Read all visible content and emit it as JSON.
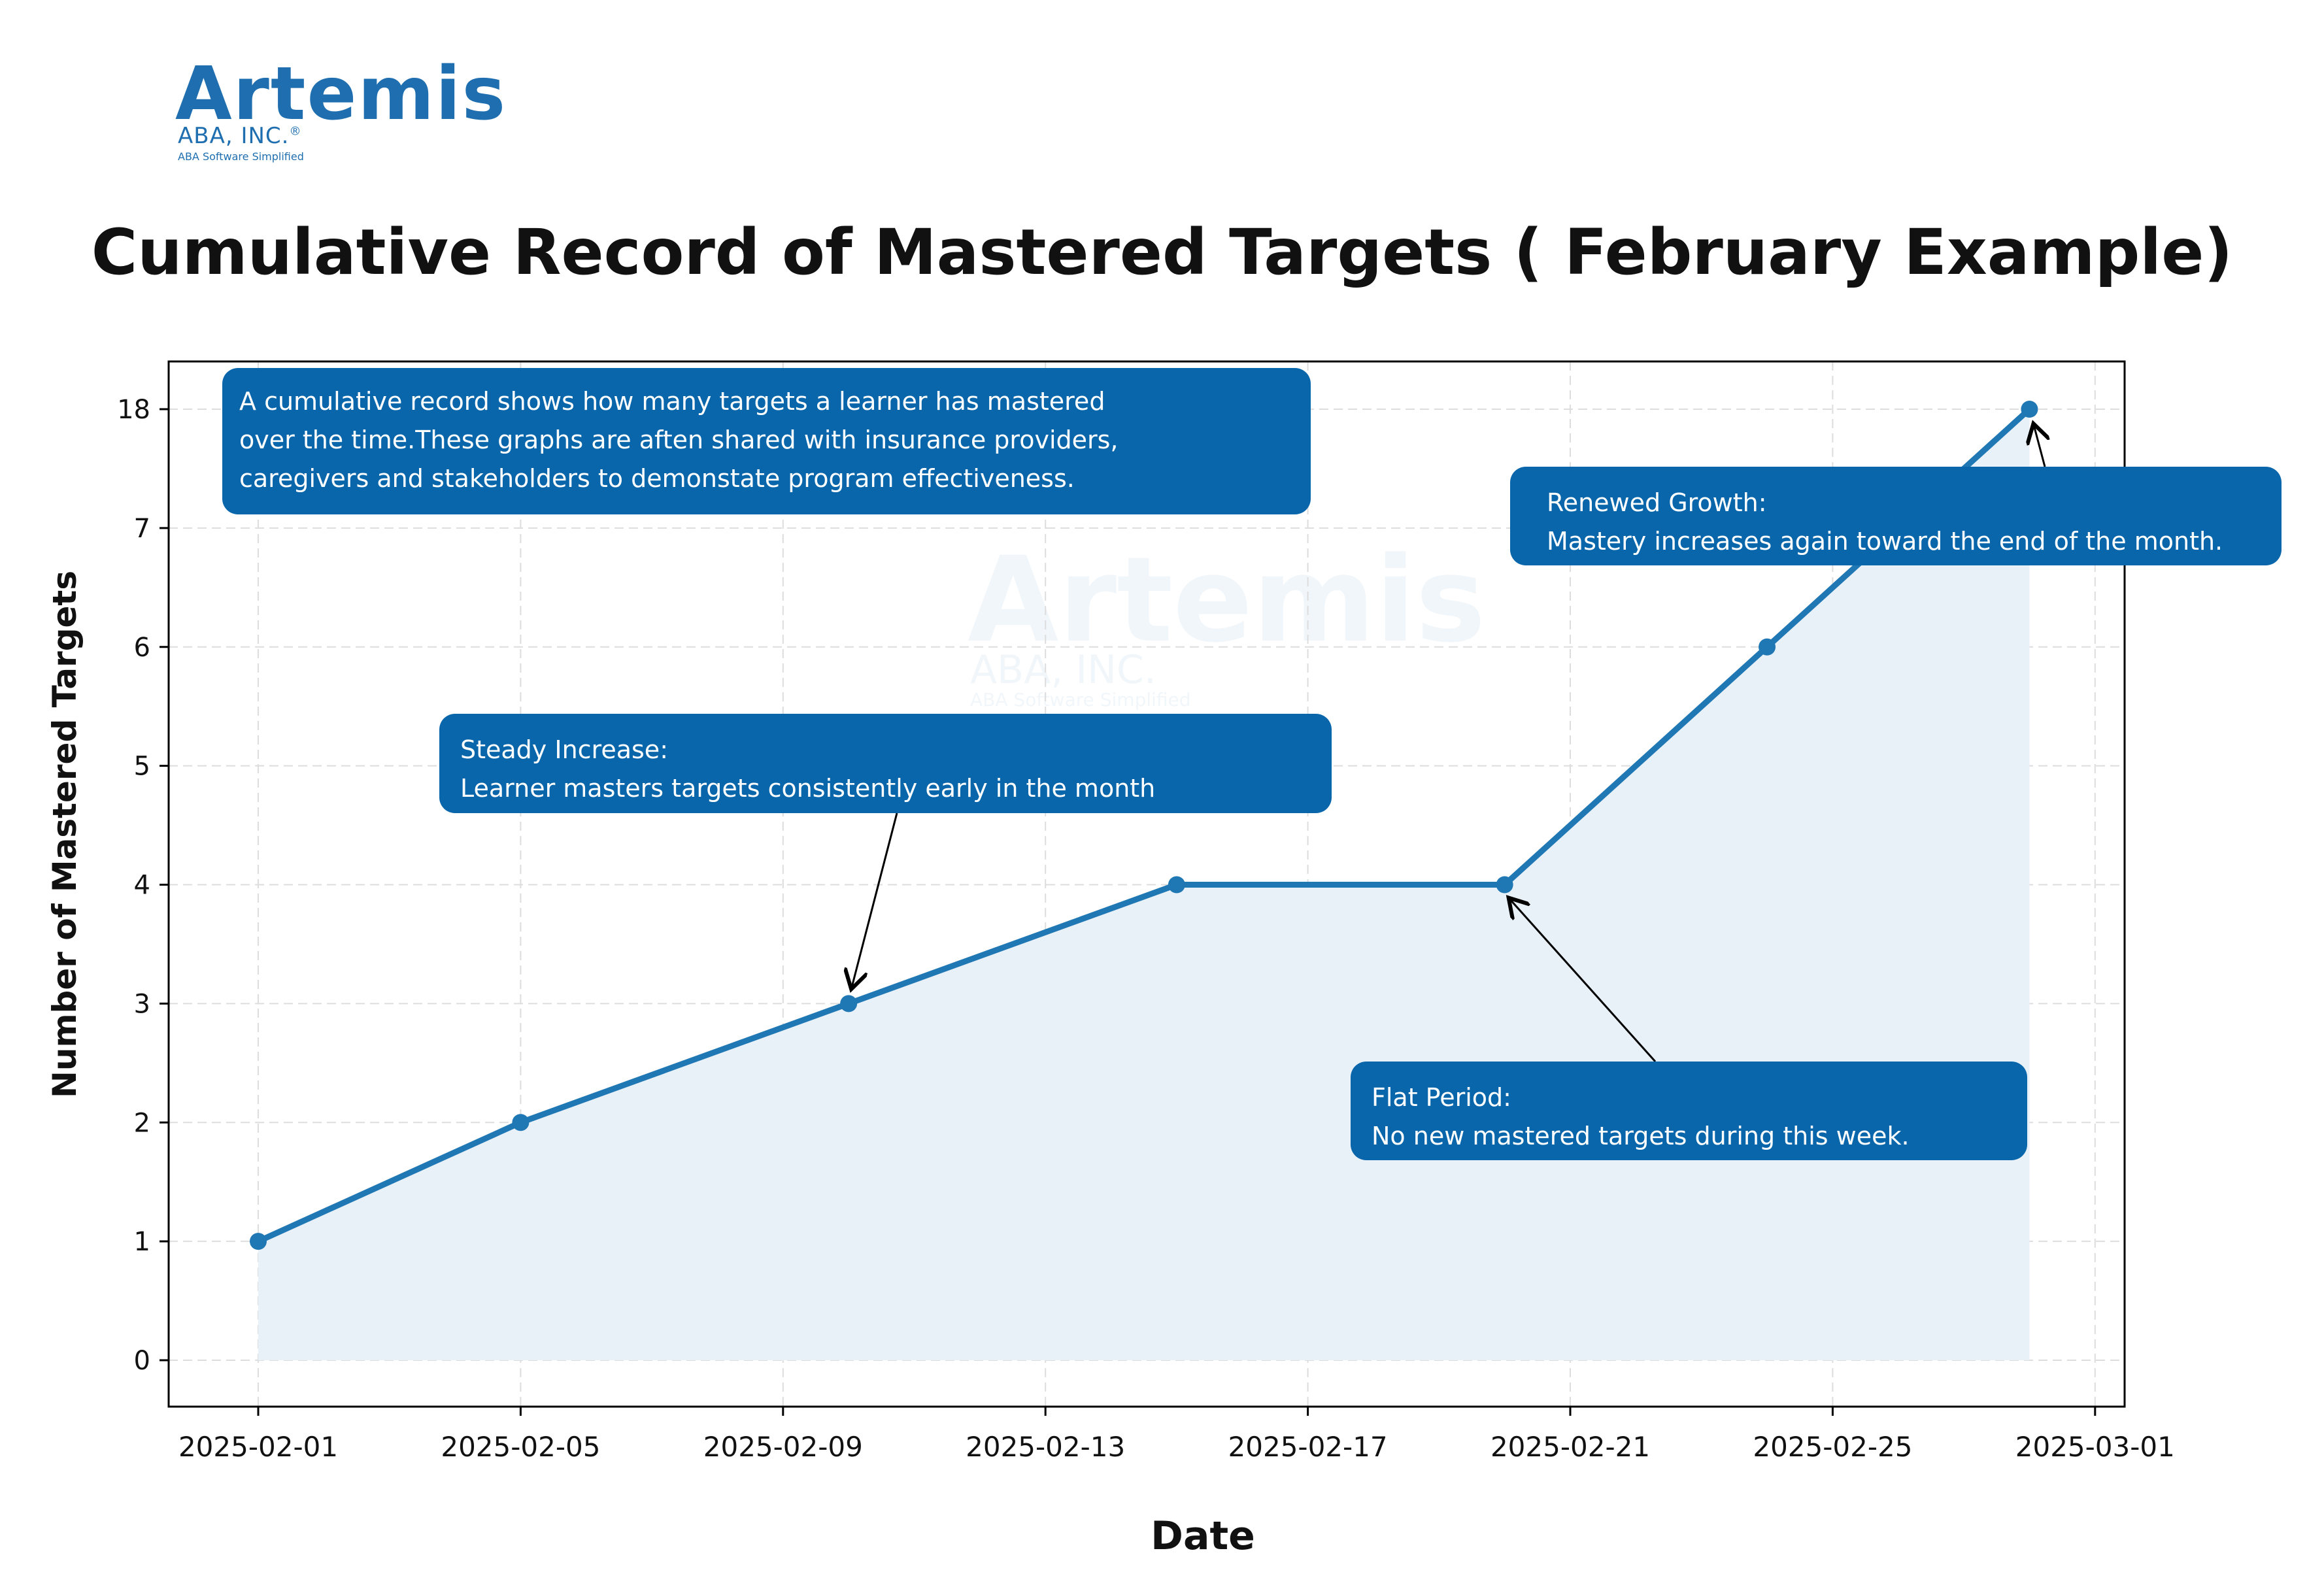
{
  "logo": {
    "word": "Artemis",
    "company": "ABA, INC.",
    "registered": "®",
    "tagline": "ABA Software Simplified"
  },
  "watermark": {
    "word": "Artemis",
    "company": "ABA, INC.",
    "tagline": "ABA Software Simplified"
  },
  "colors": {
    "line": "#1f77b4",
    "fill": "#e8f0f8",
    "callout": "#0a66ab",
    "brand": "#1f6fb0"
  },
  "chart_data": {
    "type": "line",
    "title": "Cumulative Record of Mastered Targets ( February Example)",
    "xlabel": "Date",
    "ylabel": "Number of Mastered Targets",
    "x": [
      "2025-02-01",
      "2025-02-05",
      "2025-02-10",
      "2025-02-15",
      "2025-02-20",
      "2025-02-24",
      "2025-02-28"
    ],
    "y": [
      1,
      2,
      3,
      4,
      4,
      6,
      18
    ],
    "y_ticks": [
      0,
      1,
      2,
      3,
      4,
      5,
      6,
      7,
      18
    ],
    "y_tick_labels": [
      "0",
      "1",
      "2",
      "3",
      "4",
      "5",
      "6",
      "7",
      "18"
    ],
    "x_ticks": [
      "2025-02-01",
      "2025-02-05",
      "2025-02-09",
      "2025-02-13",
      "2025-02-17",
      "2025-02-21",
      "2025-02-25",
      "2025-03-01"
    ],
    "x_tick_labels": [
      "2025-02-01",
      "2025-02-05",
      "2025-02-09",
      "2025-02-13",
      "2025-02-17",
      "2025-02-21",
      "2025-02-25",
      "2025-03-01"
    ],
    "grid": true,
    "area_fill": true,
    "annotations": [
      {
        "name": "intro",
        "lines": [
          "A cumulative record shows how many targets a learner has mastered",
          "over the time.These graphs are aften shared with insurance providers,",
          "caregivers and stakeholders to demonstate program effectiveness."
        ]
      },
      {
        "name": "steady",
        "heading": "Steady Increase:",
        "text": "Learner masters targets consistently early in the month",
        "points_to": "2025-02-10"
      },
      {
        "name": "flat",
        "heading": "Flat Period:",
        "text": "No new mastered targets during this week.",
        "points_to": "2025-02-20"
      },
      {
        "name": "renewed",
        "heading": "Renewed Growth:",
        "text": "Mastery increases again toward the end of the month.",
        "points_to": "2025-02-28"
      }
    ]
  }
}
